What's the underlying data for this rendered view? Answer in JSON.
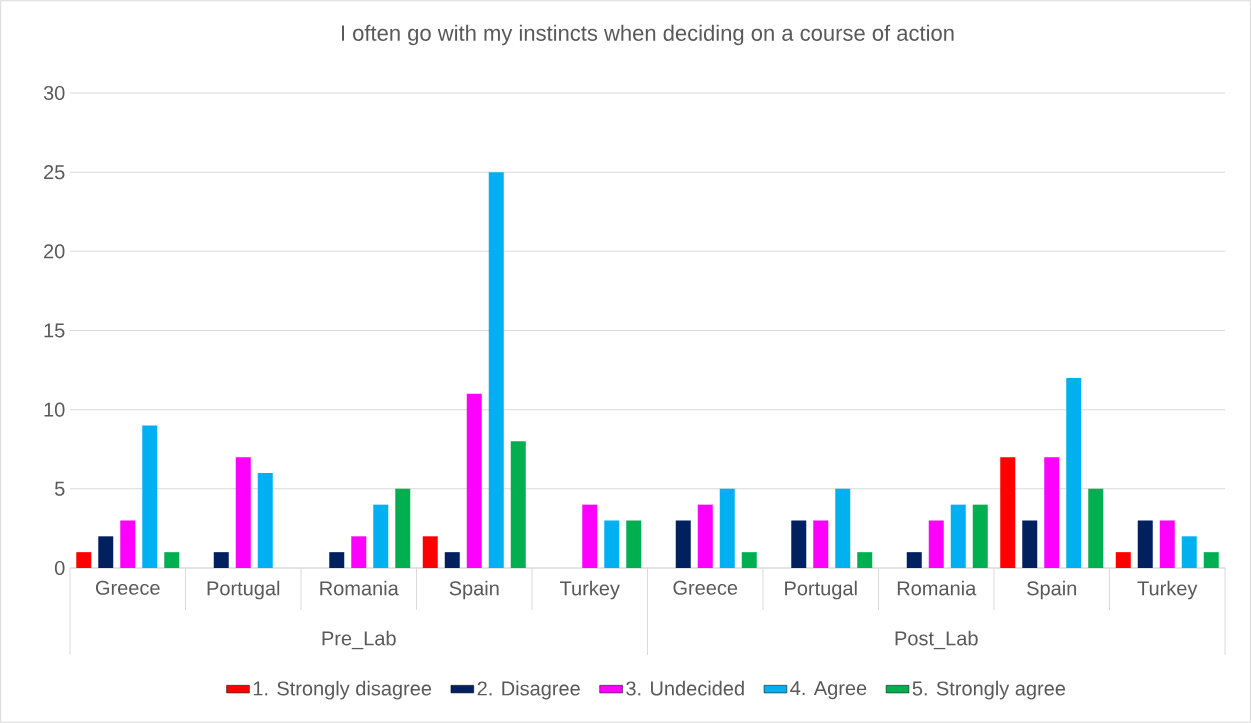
{
  "chart_data": {
    "type": "bar",
    "title": "I often go with my instincts when deciding on a course of action",
    "categories": [
      "Greece",
      "Portugal",
      "Romania",
      "Spain",
      "Turkey",
      "Greece",
      "Portugal",
      "Romania",
      "Spain",
      "Turkey"
    ],
    "annotations": [
      "Pre_Lab",
      "Post_Lab"
    ],
    "series": [
      {
        "name": "1. Strongly disagree",
        "color": "#ff0000",
        "values": [
          1,
          null,
          null,
          2,
          null,
          null,
          null,
          null,
          7,
          1
        ]
      },
      {
        "name": "2. Disagree",
        "color": "#002060",
        "values": [
          2,
          1,
          1,
          1,
          null,
          3,
          3,
          1,
          3,
          3
        ]
      },
      {
        "name": "3. Undecided",
        "color": "#ff00ff",
        "values": [
          3,
          7,
          2,
          11,
          4,
          4,
          3,
          3,
          7,
          3
        ]
      },
      {
        "name": "4. Agree",
        "color": "#00b0f0",
        "values": [
          9,
          6,
          4,
          25,
          3,
          5,
          5,
          4,
          12,
          2
        ]
      },
      {
        "name": "5. Strongly agree",
        "color": "#00b050",
        "values": [
          1,
          null,
          5,
          8,
          3,
          1,
          1,
          4,
          5,
          1
        ]
      }
    ],
    "ylim": [
      0,
      30
    ],
    "yticks": [
      0,
      5,
      10,
      15,
      20,
      25,
      30
    ],
    "grid": "y",
    "legend": "bottom"
  }
}
